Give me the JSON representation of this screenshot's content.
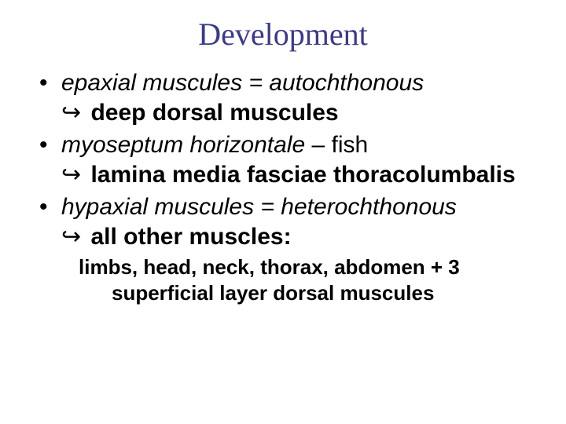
{
  "colors": {
    "title": "#3a3a8a",
    "body": "#000000",
    "background": "#ffffff"
  },
  "typography": {
    "title_font": "Times New Roman",
    "body_font": "Arial",
    "title_size_pt": 40,
    "body_size_pt": 30,
    "footnote_size_pt": 26
  },
  "title": "Development",
  "bullets": [
    {
      "line1": "epaxial muscules = autochthonous",
      "arrow": "↪",
      "line2": " deep dorsal muscules"
    },
    {
      "line1": "myoseptum horizontale – ",
      "line1_tail": "fish",
      "arrow": "↪",
      "line2": " lamina media fasciae thoracolumbalis"
    },
    {
      "line1": "hypaxial muscules = heterochthonous",
      "arrow": "↪",
      "line2": " all other muscles:"
    }
  ],
  "footnote_l1": "limbs, head, neck, thorax, abdomen + 3",
  "footnote_l2": "superficial layer dorsal muscules"
}
